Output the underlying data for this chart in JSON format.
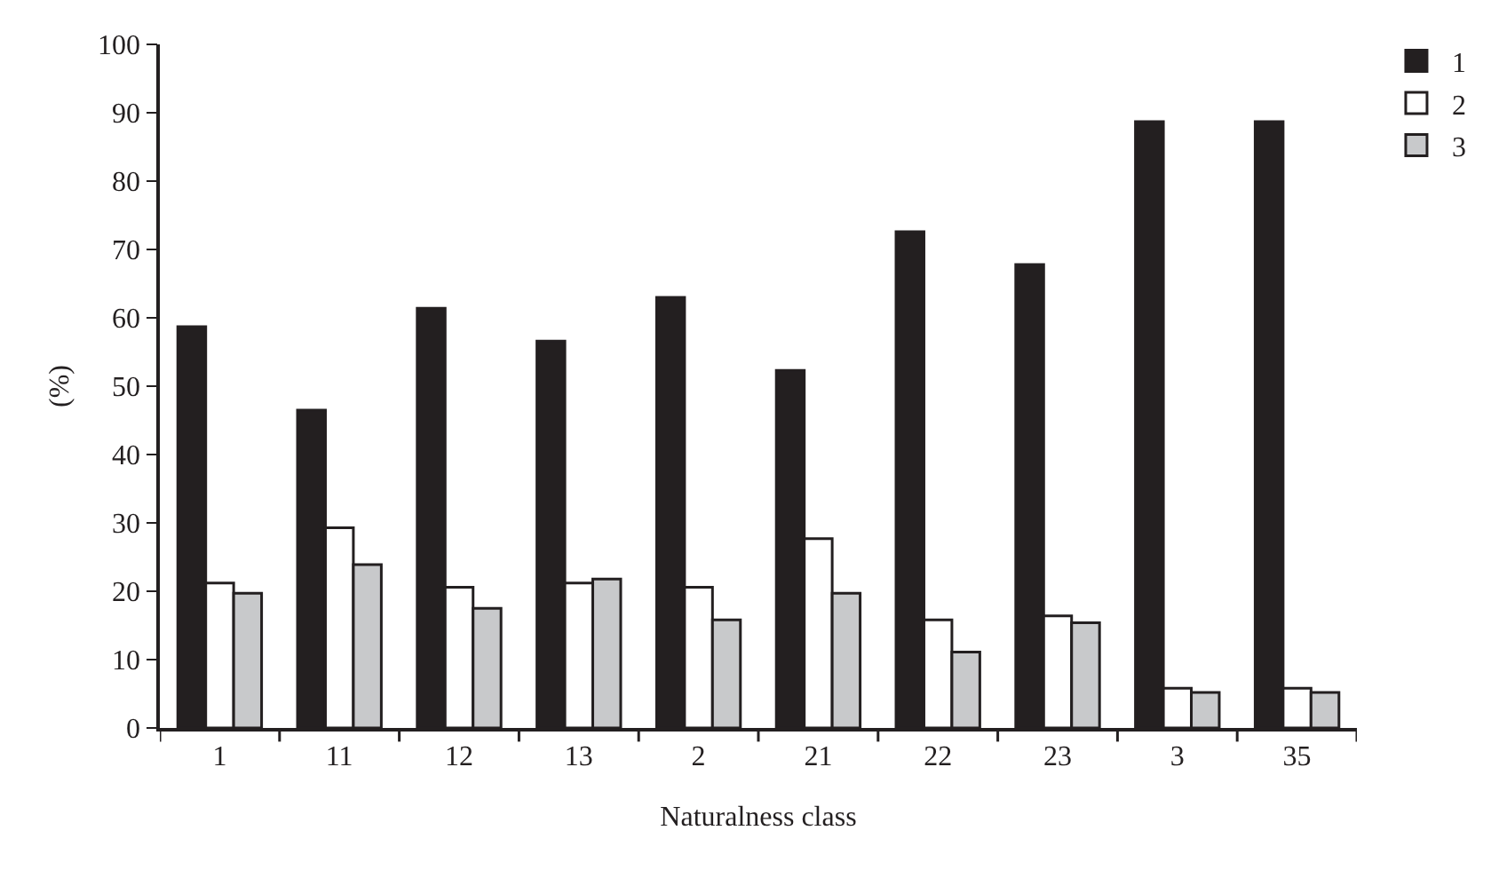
{
  "chart_data": {
    "type": "bar",
    "xlabel": "Naturalness class",
    "ylabel": "(%)",
    "categories": [
      "1",
      "11",
      "12",
      "13",
      "2",
      "21",
      "22",
      "23",
      "3",
      "35"
    ],
    "series": [
      {
        "name": "1",
        "color": "#231f20",
        "values": [
          58.7,
          46.5,
          61.4,
          56.6,
          63,
          52.3,
          72.6,
          67.8,
          88.7,
          88.7
        ]
      },
      {
        "name": "2",
        "color": "#ffffff",
        "values": [
          21.2,
          29.3,
          20.6,
          21.2,
          20.6,
          27.7,
          15.8,
          16.4,
          5.8,
          5.8
        ]
      },
      {
        "name": "3",
        "color": "#c8c9cb",
        "values": [
          19.7,
          23.9,
          17.5,
          21.8,
          15.8,
          19.7,
          11.1,
          15.4,
          5.2,
          5.2
        ]
      }
    ],
    "ylim": [
      0,
      100
    ],
    "yticks": [
      0,
      10,
      20,
      30,
      40,
      50,
      60,
      70,
      80,
      90,
      100
    ],
    "grid": false,
    "legend": "top right"
  }
}
